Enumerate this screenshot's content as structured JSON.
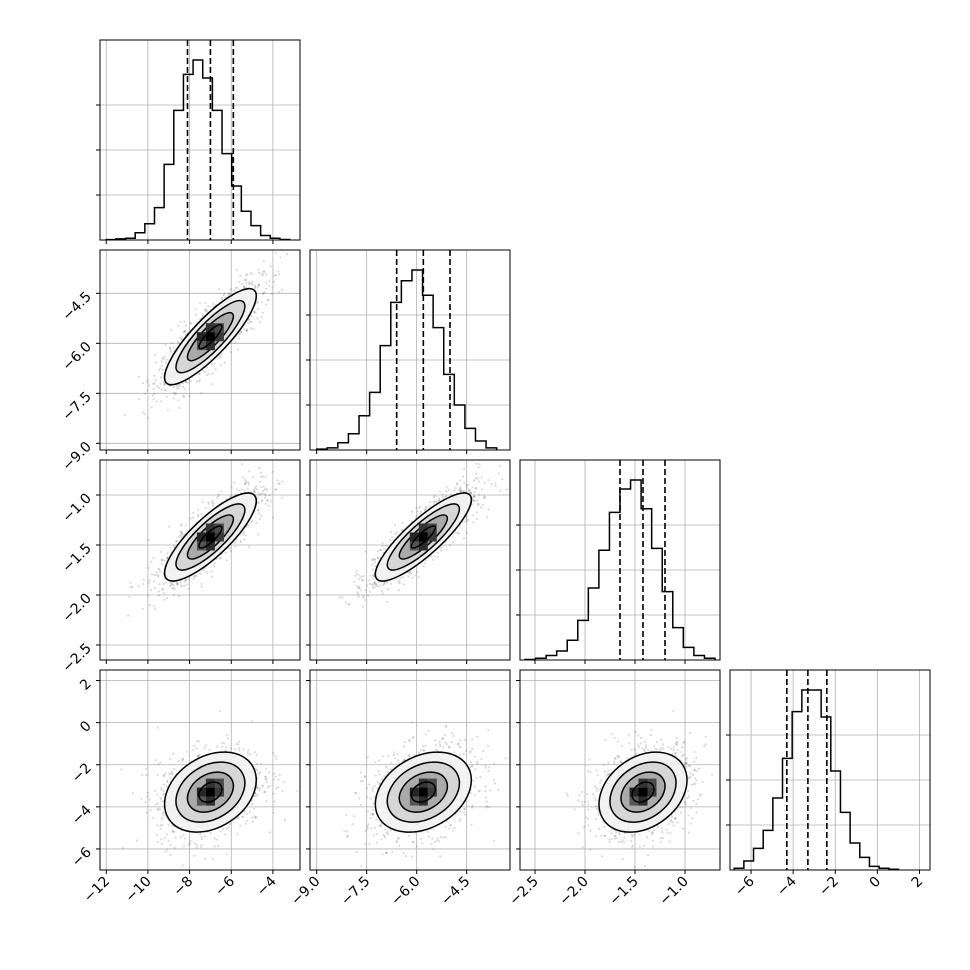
{
  "chart_data": {
    "type": "corner",
    "title": "",
    "grid": true,
    "parameters": [
      {
        "name": "",
        "range": [
          -12.3,
          -2.7
        ],
        "ticks": [
          -12,
          -10,
          -8,
          -6,
          -4
        ],
        "tick_labels": [
          "−12",
          "−10",
          "−8",
          "−6",
          "−4"
        ],
        "mean": -7.0,
        "sd": 1.1,
        "quantiles": [
          -8.1,
          -7.0,
          -5.9
        ]
      },
      {
        "name": "",
        "range": [
          -9.2,
          -3.2
        ],
        "ticks": [
          -9.0,
          -7.5,
          -6.0,
          -4.5
        ],
        "tick_labels": [
          "−9.0",
          "−7.5",
          "−6.0",
          "−4.5"
        ],
        "mean": -5.8,
        "sd": 0.72,
        "quantiles": [
          -6.6,
          -5.8,
          -5.0
        ]
      },
      {
        "name": "",
        "range": [
          -2.65,
          -0.65
        ],
        "ticks": [
          -2.5,
          -2.0,
          -1.5,
          -1.0
        ],
        "tick_labels": [
          "−2.5",
          "−2.0",
          "−1.5",
          "−1.0"
        ],
        "mean": -1.42,
        "sd": 0.22,
        "quantiles": [
          -1.65,
          -1.42,
          -1.2
        ]
      },
      {
        "name": "",
        "range": [
          -7.0,
          2.5
        ],
        "ticks": [
          -6,
          -4,
          -2,
          0,
          2
        ],
        "tick_labels": [
          "−6",
          "−4",
          "−2",
          "0",
          "2"
        ],
        "mean": -3.3,
        "sd": 0.95,
        "quantiles": [
          -4.3,
          -3.3,
          -2.4
        ]
      }
    ],
    "correlations": [
      [
        1.0,
        0.85,
        0.82,
        0.3
      ],
      [
        0.85,
        1.0,
        0.85,
        0.3
      ],
      [
        0.82,
        0.85,
        1.0,
        0.3
      ],
      [
        0.3,
        0.3,
        0.3,
        1.0
      ]
    ],
    "histograms": [
      [
        0.002,
        0.006,
        0.01,
        0.04,
        0.09,
        0.18,
        0.42,
        0.72,
        0.92,
        1.0,
        0.9,
        0.72,
        0.48,
        0.3,
        0.16,
        0.08,
        0.025,
        0.01,
        0.003
      ],
      [
        0.005,
        0.012,
        0.04,
        0.09,
        0.19,
        0.32,
        0.58,
        0.82,
        0.94,
        1.0,
        0.86,
        0.68,
        0.42,
        0.25,
        0.12,
        0.05,
        0.012
      ],
      [
        0.003,
        0.01,
        0.025,
        0.05,
        0.11,
        0.22,
        0.4,
        0.61,
        0.82,
        0.95,
        1.0,
        0.84,
        0.62,
        0.38,
        0.18,
        0.07,
        0.025,
        0.01
      ],
      [
        0.01,
        0.05,
        0.12,
        0.22,
        0.4,
        0.62,
        0.88,
        1.0,
        1.0,
        0.85,
        0.55,
        0.32,
        0.15,
        0.07,
        0.02,
        0.01,
        0.004
      ]
    ],
    "hist_bin_ranges": [
      [
        -12.0,
        -3.2
      ],
      [
        -9.0,
        -3.6
      ],
      [
        -2.6,
        -0.7
      ],
      [
        -6.8,
        1.0
      ]
    ],
    "contour_levels": [
      0.5,
      1.0,
      1.5,
      2.0
    ]
  }
}
